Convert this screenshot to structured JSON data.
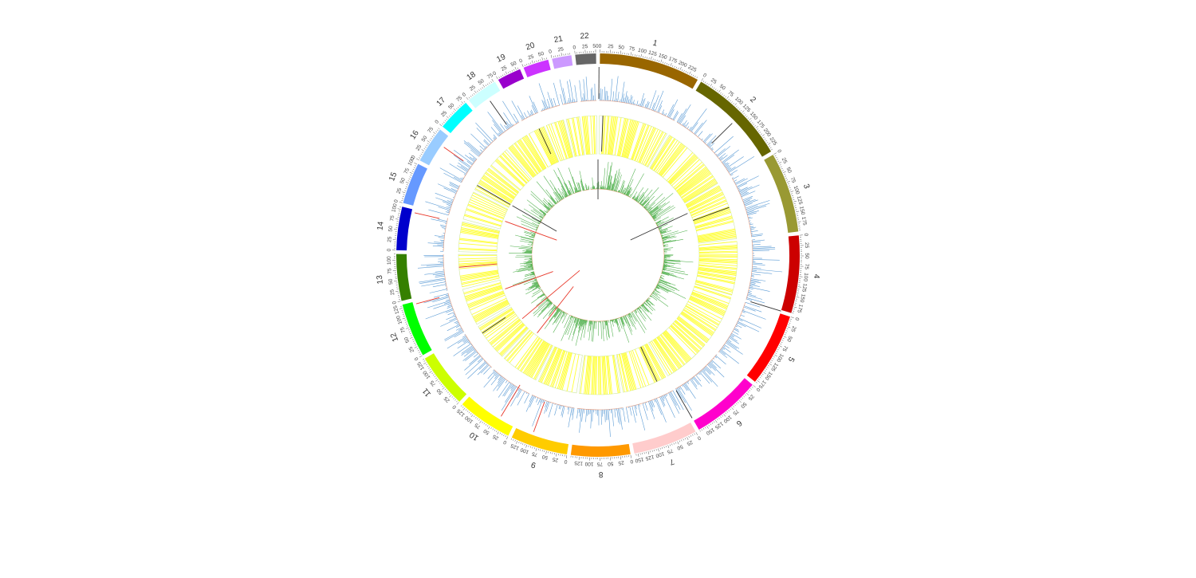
{
  "figure": {
    "type": "circos",
    "genome": {
      "chromosomes": [
        {
          "name": "1",
          "length_mb": 249,
          "color": "#996600",
          "tick_labels": [
            "0",
            "25",
            "50",
            "75",
            "100",
            "125",
            "150",
            "175",
            "200",
            "225"
          ]
        },
        {
          "name": "2",
          "length_mb": 243,
          "color": "#666600",
          "tick_labels": [
            "0",
            "25",
            "50",
            "75",
            "100",
            "125",
            "150",
            "175",
            "200",
            "225"
          ]
        },
        {
          "name": "3",
          "length_mb": 198,
          "color": "#999933",
          "tick_labels": [
            "0",
            "25",
            "50",
            "75",
            "100",
            "125",
            "150",
            "175"
          ]
        },
        {
          "name": "4",
          "length_mb": 191,
          "color": "#cc0000",
          "tick_labels": [
            "0",
            "25",
            "50",
            "75",
            "100",
            "125",
            "150",
            "175"
          ]
        },
        {
          "name": "5",
          "length_mb": 181,
          "color": "#ff0000",
          "tick_labels": [
            "0",
            "25",
            "50",
            "75",
            "100",
            "125",
            "150",
            "175"
          ]
        },
        {
          "name": "6",
          "length_mb": 171,
          "color": "#ff00cc",
          "tick_labels": [
            "0",
            "25",
            "50",
            "75",
            "100",
            "125",
            "150"
          ]
        },
        {
          "name": "7",
          "length_mb": 159,
          "color": "#ffcccc",
          "tick_labels": [
            "0",
            "25",
            "50",
            "75",
            "100",
            "125",
            "150"
          ]
        },
        {
          "name": "8",
          "length_mb": 146,
          "color": "#ff9900",
          "tick_labels": [
            "0",
            "25",
            "50",
            "75",
            "100",
            "125"
          ]
        },
        {
          "name": "9",
          "length_mb": 141,
          "color": "#ffcc00",
          "tick_labels": [
            "0",
            "25",
            "50",
            "75",
            "100",
            "125"
          ]
        },
        {
          "name": "10",
          "length_mb": 136,
          "color": "#ffff00",
          "tick_labels": [
            "0",
            "25",
            "50",
            "75",
            "100",
            "125"
          ]
        },
        {
          "name": "11",
          "length_mb": 135,
          "color": "#ccff00",
          "tick_labels": [
            "0",
            "25",
            "50",
            "75",
            "100",
            "125"
          ]
        },
        {
          "name": "12",
          "length_mb": 133,
          "color": "#00ff00",
          "tick_labels": [
            "0",
            "25",
            "50",
            "75",
            "100",
            "125"
          ]
        },
        {
          "name": "13",
          "length_mb": 115,
          "color": "#358000",
          "tick_labels": [
            "0",
            "25",
            "50",
            "75",
            "100"
          ]
        },
        {
          "name": "14",
          "length_mb": 107,
          "color": "#0000cc",
          "tick_labels": [
            "0",
            "25",
            "50",
            "75",
            "100"
          ]
        },
        {
          "name": "15",
          "length_mb": 102,
          "color": "#6699ff",
          "tick_labels": [
            "0",
            "25",
            "50",
            "75",
            "100"
          ]
        },
        {
          "name": "16",
          "length_mb": 90,
          "color": "#99ccff",
          "tick_labels": [
            "0",
            "25",
            "50",
            "75"
          ]
        },
        {
          "name": "17",
          "length_mb": 81,
          "color": "#00ffff",
          "tick_labels": [
            "0",
            "25",
            "50",
            "75"
          ]
        },
        {
          "name": "18",
          "length_mb": 78,
          "color": "#ccffff",
          "tick_labels": [
            "0",
            "25",
            "50",
            "75"
          ]
        },
        {
          "name": "19",
          "length_mb": 59,
          "color": "#9900cc",
          "tick_labels": [
            "0",
            "25",
            "50"
          ]
        },
        {
          "name": "20",
          "length_mb": 63,
          "color": "#cc33ff",
          "tick_labels": [
            "0",
            "25",
            "50"
          ]
        },
        {
          "name": "21",
          "length_mb": 48,
          "color": "#cc99ff",
          "tick_labels": [
            "0",
            "25"
          ]
        },
        {
          "name": "22",
          "length_mb": 51,
          "color": "#666666",
          "tick_labels": [
            "0",
            "25",
            "50"
          ]
        }
      ]
    },
    "tracks": {
      "outer_histogram": {
        "color": "#5b9bd5",
        "baseline_color": "#f4a582"
      },
      "heatmap_ring": {
        "color": "#ffff33",
        "background": "#ffffff",
        "border": "#cfe8a0"
      },
      "inner_histogram": {
        "color": "#4daf4a",
        "baseline_color": "#f4a582"
      },
      "line_colors": {
        "dark": "#333333",
        "red": "#e8382a"
      }
    }
  }
}
